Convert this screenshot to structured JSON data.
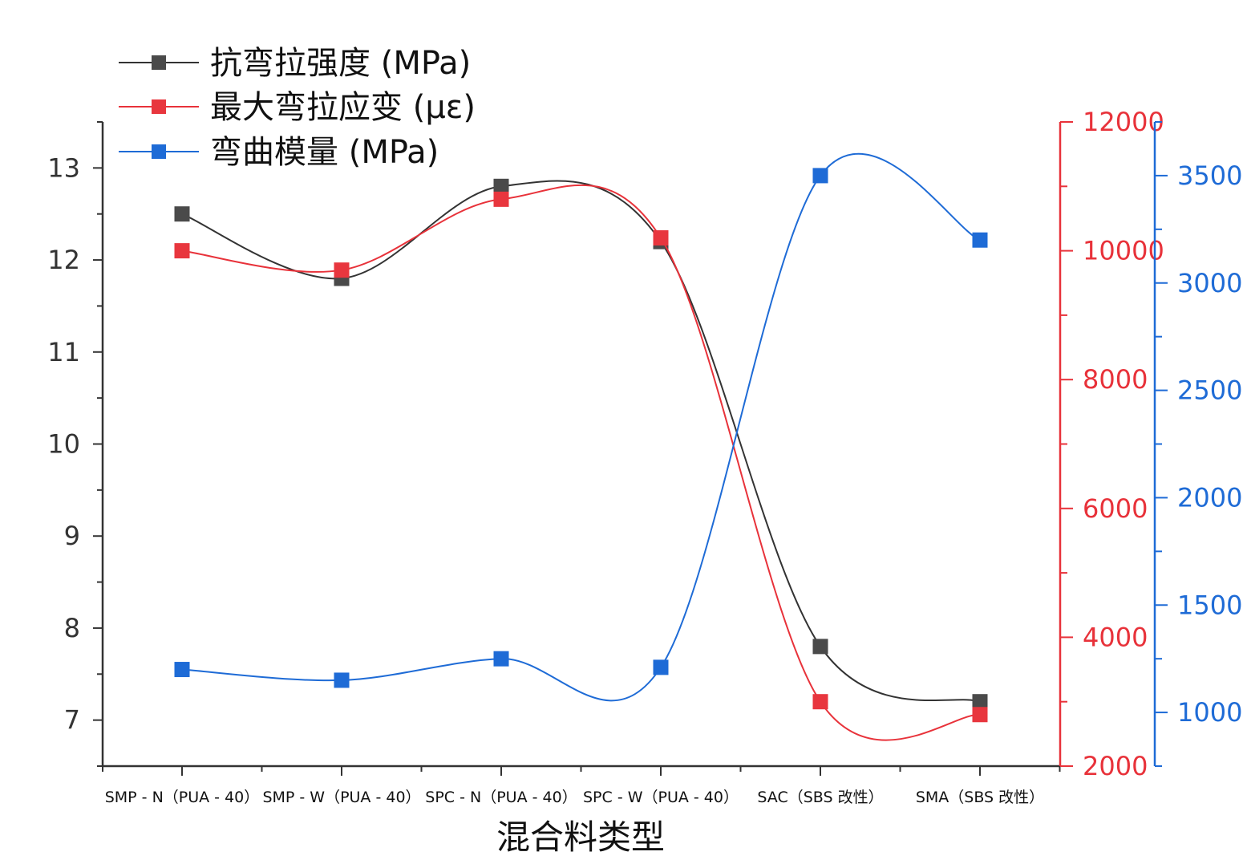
{
  "chart_data": {
    "type": "line",
    "title": "",
    "xlabel": "混合料类型",
    "categories": [
      "SMP - N（PUA - 40）",
      "SMP - W（PUA - 40）",
      "SPC - N（PUA - 40）",
      "SPC - W（PUA - 40）",
      "SAC（SBS 改性）",
      "SMA（SBS 改性）"
    ],
    "series": [
      {
        "name": "抗弯拉强度 (MPa)",
        "axis": "left",
        "color": "#333333",
        "marker_color": "#4a4a4a",
        "values": [
          12.5,
          11.8,
          12.8,
          12.2,
          7.8,
          7.2
        ]
      },
      {
        "name": "最大弯拉应变 (με)",
        "axis": "right1",
        "color": "#e8323a",
        "marker_color": "#e8363e",
        "values": [
          10000,
          9700,
          10800,
          10200,
          3000,
          2800
        ]
      },
      {
        "name": "弯曲模量 (MPa)",
        "axis": "right2",
        "color": "#1e6bd6",
        "marker_color": "#1e6bd6",
        "values": [
          1200,
          1150,
          1250,
          1210,
          3500,
          3200
        ]
      }
    ],
    "axes": {
      "left": {
        "ylim": [
          6.5,
          13.5
        ],
        "ticks": [
          7,
          8,
          9,
          10,
          11,
          12,
          13
        ],
        "tick_labels": [
          "7",
          "8",
          "9",
          "10",
          "11",
          "12",
          "13"
        ],
        "color": "#333333"
      },
      "right1": {
        "ylim": [
          2000,
          12000
        ],
        "ticks": [
          2000,
          4000,
          6000,
          8000,
          10000,
          12000
        ],
        "tick_labels": [
          "2000",
          "4000",
          "6000",
          "8000",
          "10000",
          "12000"
        ],
        "color": "#e8323a"
      },
      "right2": {
        "ylim": [
          750,
          3750
        ],
        "ticks": [
          1000,
          1500,
          2000,
          2500,
          3000,
          3500
        ],
        "tick_labels": [
          "1000",
          "1500",
          "2000",
          "2500",
          "3000",
          "3500"
        ],
        "color": "#1e6bd6"
      }
    },
    "legend": "top-left",
    "grid": false,
    "smooth": true
  }
}
